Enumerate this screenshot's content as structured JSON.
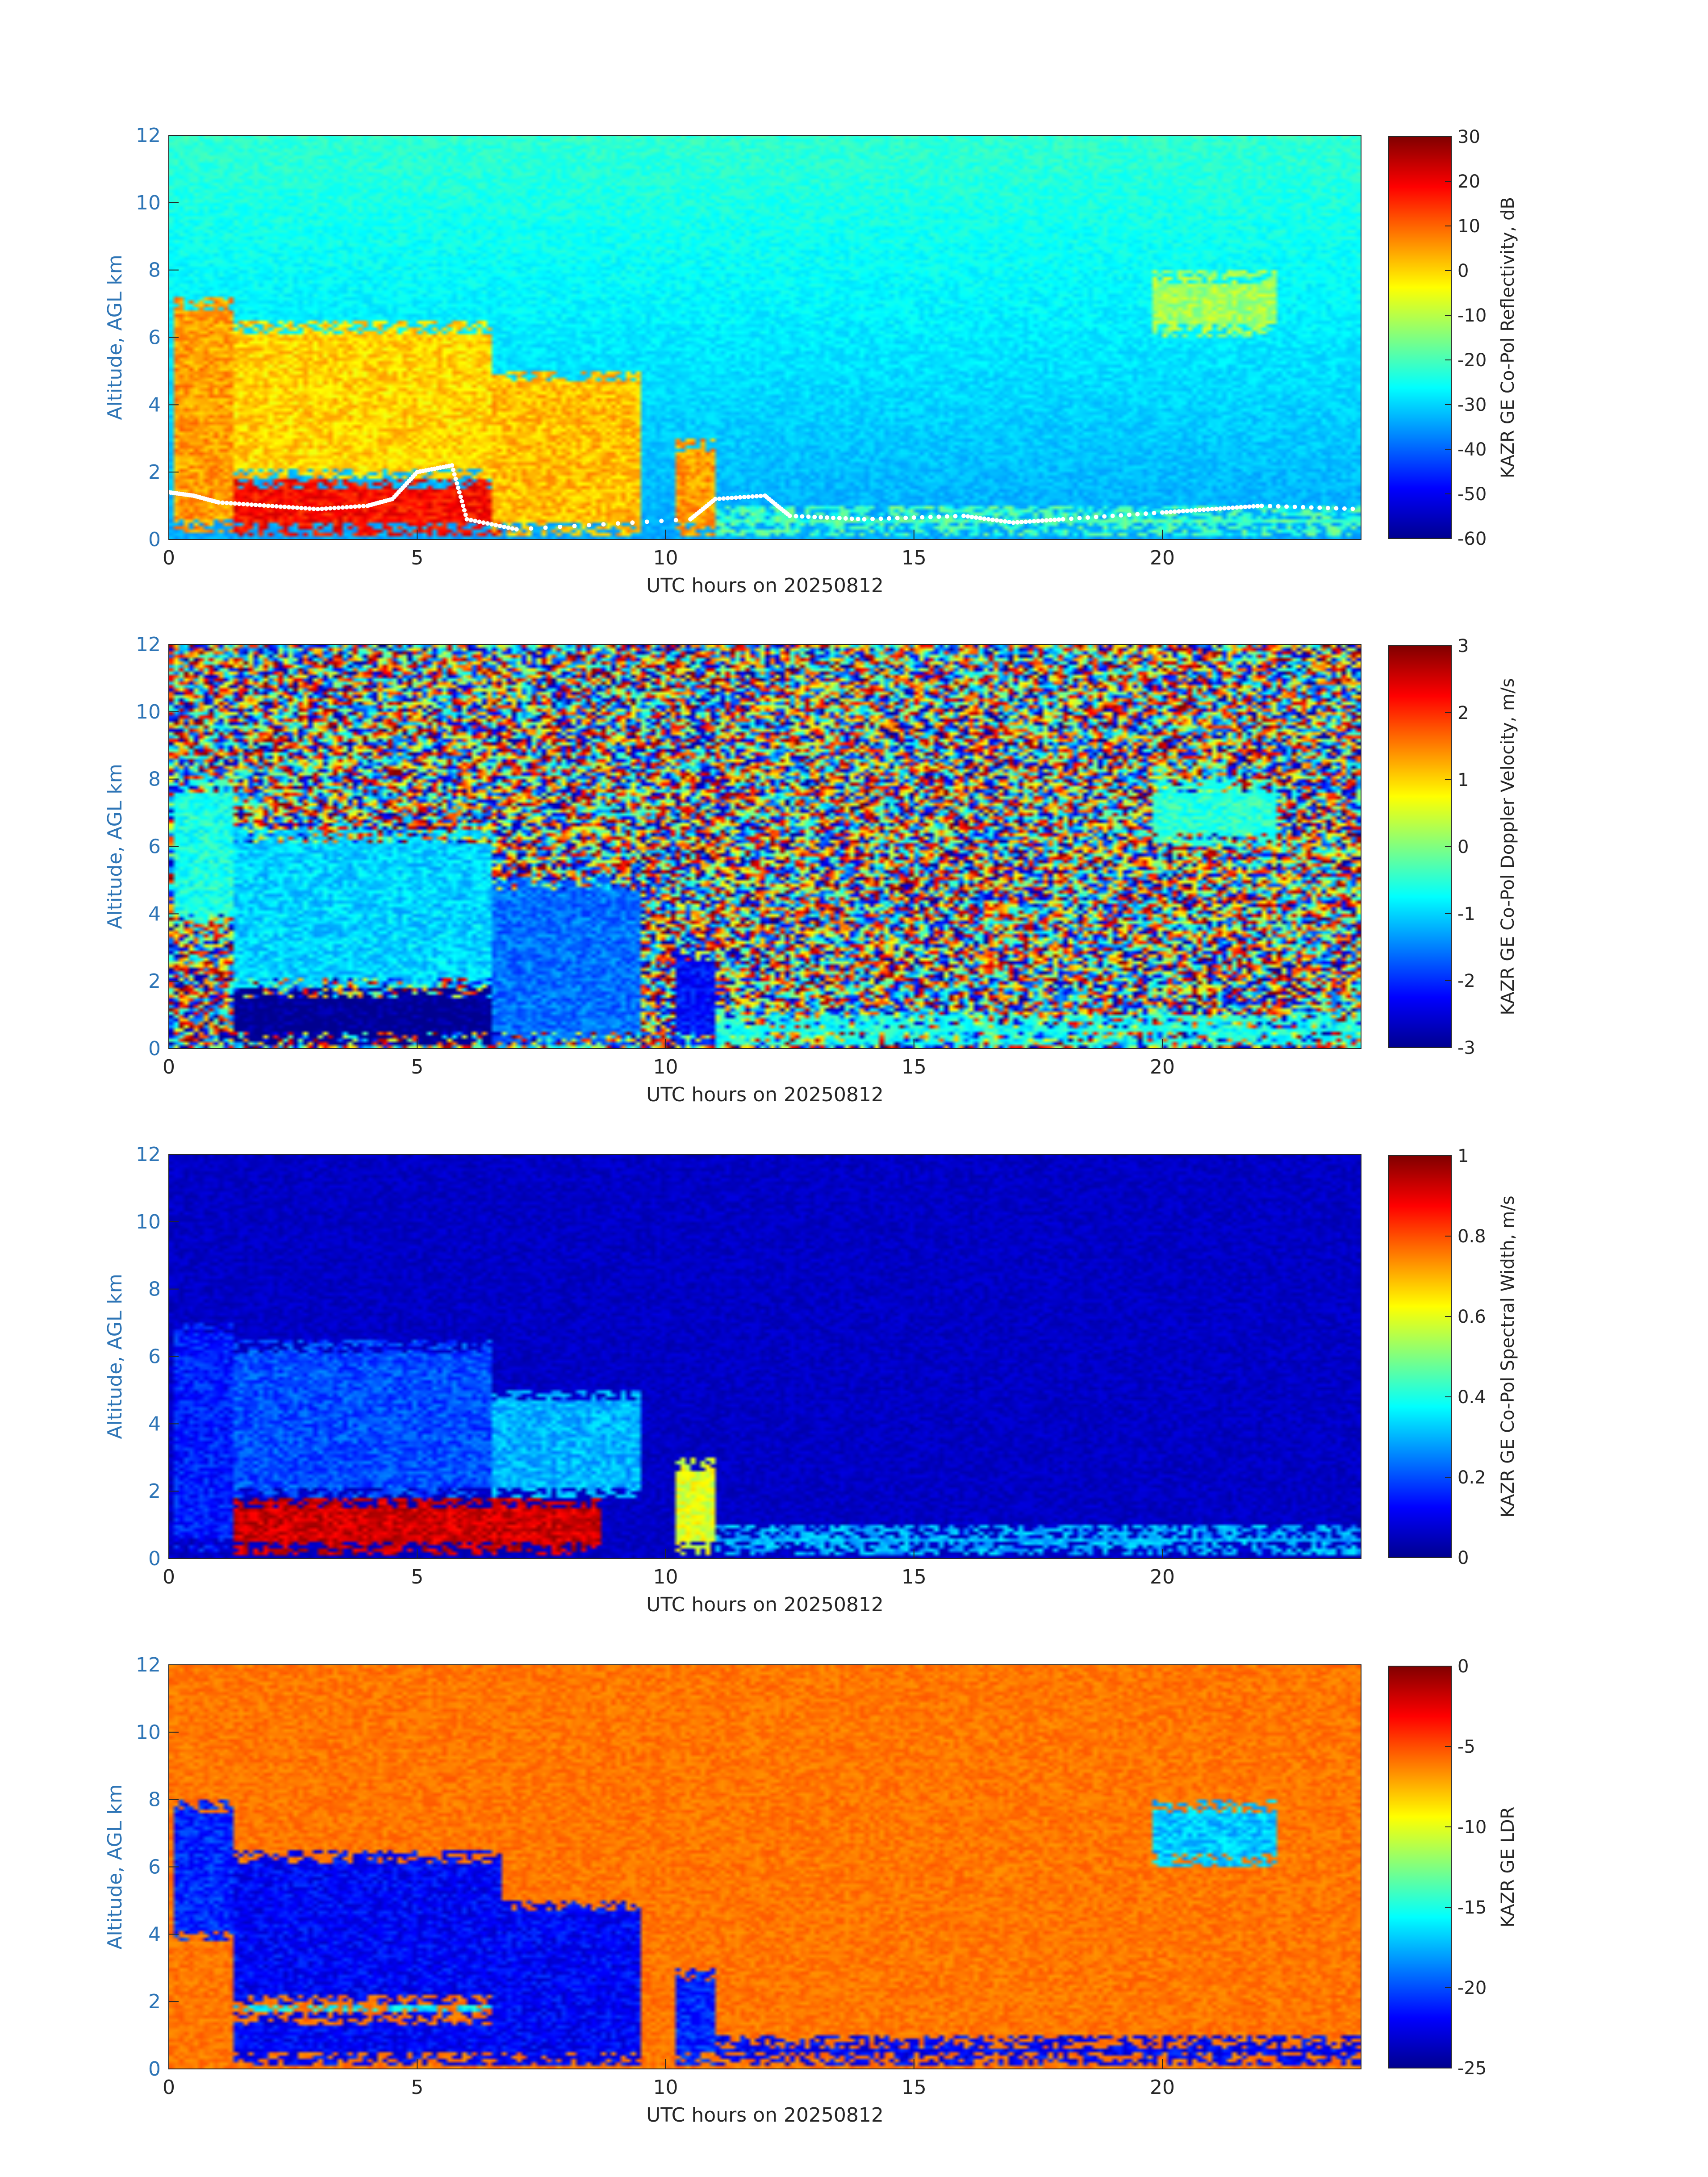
{
  "colors": {
    "axis_label_y": "#2e75b6",
    "axis_label_x": "#262626",
    "tick": "#262626",
    "colormap": [
      "#00008f",
      "#0000ff",
      "#0080ff",
      "#00ffff",
      "#80ff80",
      "#ffff00",
      "#ff8000",
      "#ff0000",
      "#800000"
    ]
  },
  "chart_data": [
    {
      "type": "heatmap",
      "variable": "reflectivity",
      "xlabel": "UTC hours on 20250812",
      "ylabel": "Altitude, AGL km",
      "xlim": [
        0,
        24
      ],
      "ylim": [
        0,
        12
      ],
      "xticks": [
        0,
        5,
        10,
        15,
        20
      ],
      "yticks": [
        0,
        2,
        4,
        6,
        8,
        10,
        12
      ],
      "colorbar": {
        "label": "KAZR GE Co-Pol Reflectivity, dB",
        "range": [
          -60,
          30
        ],
        "ticks": [
          30,
          20,
          10,
          0,
          -10,
          -20,
          -30,
          -40,
          -50,
          -60
        ]
      },
      "background_value": -25,
      "features": [
        {
          "x": [
            0.1,
            1.3
          ],
          "y": [
            0.2,
            7.2
          ],
          "value": 5
        },
        {
          "x": [
            1.3,
            6.7
          ],
          "y": [
            0.1,
            1.8
          ],
          "value": 18
        },
        {
          "x": [
            1.3,
            6.5
          ],
          "y": [
            1.8,
            6.5
          ],
          "value": 0
        },
        {
          "x": [
            6.5,
            9.5
          ],
          "y": [
            0.1,
            5.0
          ],
          "value": 2
        },
        {
          "x": [
            10.2,
            11.0
          ],
          "y": [
            0.1,
            3.0
          ],
          "value": 5
        },
        {
          "x": [
            11.0,
            24.0
          ],
          "y": [
            0.1,
            1.0
          ],
          "value": -20
        },
        {
          "x": [
            19.8,
            22.3
          ],
          "y": [
            6.0,
            8.0
          ],
          "value": -12
        }
      ],
      "cloud_base_km": [
        [
          0.0,
          1.4
        ],
        [
          0.5,
          1.3
        ],
        [
          1.0,
          1.1
        ],
        [
          2.0,
          1.0
        ],
        [
          3.0,
          0.9
        ],
        [
          4.0,
          1.0
        ],
        [
          4.5,
          1.2
        ],
        [
          5.0,
          2.0
        ],
        [
          5.7,
          2.2
        ],
        [
          6.0,
          0.6
        ],
        [
          7.0,
          0.3
        ],
        [
          10.5,
          0.6
        ],
        [
          11.0,
          1.2
        ],
        [
          12.0,
          1.3
        ],
        [
          12.5,
          0.7
        ],
        [
          14.0,
          0.6
        ],
        [
          16.0,
          0.7
        ],
        [
          17.0,
          0.5
        ],
        [
          18.0,
          0.6
        ],
        [
          20.0,
          0.8
        ],
        [
          21.0,
          0.9
        ],
        [
          22.0,
          1.0
        ],
        [
          24.0,
          0.9
        ]
      ]
    },
    {
      "type": "heatmap",
      "variable": "doppler_velocity",
      "xlabel": "UTC hours on 20250812",
      "ylabel": "Altitude, AGL km",
      "xlim": [
        0,
        24
      ],
      "ylim": [
        0,
        12
      ],
      "xticks": [
        0,
        5,
        10,
        15,
        20
      ],
      "yticks": [
        0,
        2,
        4,
        6,
        8,
        10,
        12
      ],
      "colorbar": {
        "label": "KAZR GE Co-Pol Doppler Velocity, m/s",
        "range": [
          -3,
          3
        ],
        "ticks": [
          3,
          2,
          1,
          0,
          -1,
          -2,
          -3
        ]
      },
      "background_value": "noise",
      "features": [
        {
          "x": [
            0.1,
            1.3
          ],
          "y": [
            3.7,
            8.0
          ],
          "value": -0.6
        },
        {
          "x": [
            1.3,
            6.7
          ],
          "y": [
            0.1,
            1.8
          ],
          "value": -3.0
        },
        {
          "x": [
            1.3,
            6.5
          ],
          "y": [
            1.8,
            6.5
          ],
          "value": -1.0
        },
        {
          "x": [
            6.5,
            9.5
          ],
          "y": [
            0.1,
            5.0
          ],
          "value": -1.6
        },
        {
          "x": [
            10.2,
            11.0
          ],
          "y": [
            0.1,
            3.0
          ],
          "value": -2.2
        },
        {
          "x": [
            11.0,
            24.0
          ],
          "y": [
            0.1,
            1.0
          ],
          "value": -0.6
        },
        {
          "x": [
            19.8,
            22.3
          ],
          "y": [
            6.0,
            8.0
          ],
          "value": -0.5
        }
      ]
    },
    {
      "type": "heatmap",
      "variable": "spectral_width",
      "xlabel": "UTC hours on 20250812",
      "ylabel": "Altitude, AGL km",
      "xlim": [
        0,
        24
      ],
      "ylim": [
        0,
        12
      ],
      "xticks": [
        0,
        5,
        10,
        15,
        20
      ],
      "yticks": [
        0,
        2,
        4,
        6,
        8,
        10,
        12
      ],
      "colorbar": {
        "label": "KAZR GE Co-Pol Spectral Width, m/s",
        "range": [
          0,
          1
        ],
        "ticks": [
          1,
          0.8,
          0.6,
          0.4,
          0.2,
          0
        ]
      },
      "background_value": 0.06,
      "features": [
        {
          "x": [
            0.1,
            1.3
          ],
          "y": [
            0.2,
            7.0
          ],
          "value": 0.15
        },
        {
          "x": [
            1.3,
            8.7
          ],
          "y": [
            0.1,
            1.8
          ],
          "value": 0.92
        },
        {
          "x": [
            1.3,
            6.5
          ],
          "y": [
            1.8,
            6.5
          ],
          "value": 0.2
        },
        {
          "x": [
            6.5,
            9.5
          ],
          "y": [
            1.8,
            5.0
          ],
          "value": 0.3
        },
        {
          "x": [
            10.2,
            11.0
          ],
          "y": [
            0.1,
            3.0
          ],
          "value": 0.6
        },
        {
          "x": [
            11.0,
            24.0
          ],
          "y": [
            0.1,
            1.0
          ],
          "value": 0.3
        }
      ]
    },
    {
      "type": "heatmap",
      "variable": "ldr",
      "xlabel": "UTC hours on 20250812",
      "ylabel": "Altitude, AGL km",
      "xlim": [
        0,
        24
      ],
      "ylim": [
        0,
        12
      ],
      "xticks": [
        0,
        5,
        10,
        15,
        20
      ],
      "yticks": [
        0,
        2,
        4,
        6,
        8,
        10,
        12
      ],
      "colorbar": {
        "label": "KAZR GE LDR",
        "range": [
          -25,
          0
        ],
        "ticks": [
          0,
          -5,
          -10,
          -15,
          -20,
          -25
        ]
      },
      "background_value": -6,
      "features": [
        {
          "x": [
            0.1,
            1.3
          ],
          "y": [
            3.8,
            8.0
          ],
          "value": -21
        },
        {
          "x": [
            1.3,
            6.7
          ],
          "y": [
            1.9,
            6.5
          ],
          "value": -22
        },
        {
          "x": [
            1.3,
            8.7
          ],
          "y": [
            0.1,
            1.7
          ],
          "value": -22
        },
        {
          "x": [
            1.3,
            8.7
          ],
          "y": [
            1.7,
            1.9
          ],
          "value": -16
        },
        {
          "x": [
            6.5,
            9.5
          ],
          "y": [
            0.1,
            5.0
          ],
          "value": -22
        },
        {
          "x": [
            10.2,
            11.0
          ],
          "y": [
            0.1,
            3.0
          ],
          "value": -21
        },
        {
          "x": [
            11.0,
            24.0
          ],
          "y": [
            0.1,
            1.0
          ],
          "value": -22
        },
        {
          "x": [
            19.8,
            22.3
          ],
          "y": [
            6.0,
            8.0
          ],
          "value": -17
        }
      ]
    }
  ]
}
